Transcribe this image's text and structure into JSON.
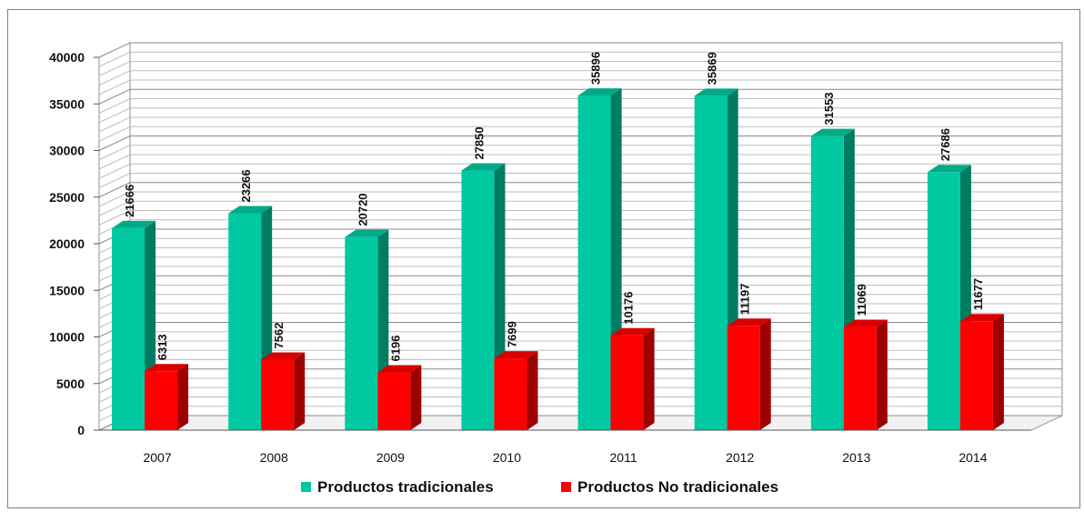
{
  "chart_data": {
    "type": "bar",
    "categories": [
      "2007",
      "2008",
      "2009",
      "2010",
      "2011",
      "2012",
      "2013",
      "2014"
    ],
    "series": [
      {
        "name": "Productos tradicionales",
        "color": "#00c8a0",
        "values": [
          21666,
          23266,
          20720,
          27850,
          35896,
          35869,
          31553,
          27686
        ]
      },
      {
        "name": "Productos No tradicionales",
        "color": "#ff0000",
        "values": [
          6313,
          7562,
          6196,
          7699,
          10176,
          11197,
          11069,
          11677
        ]
      }
    ],
    "yticks": [
      "0",
      "5000",
      "10000",
      "15000",
      "20000",
      "25000",
      "30000",
      "35000",
      "40000"
    ],
    "ylim": [
      0,
      40000
    ],
    "grid": true,
    "legend": "bottom",
    "style": "3d-clustered-column"
  }
}
